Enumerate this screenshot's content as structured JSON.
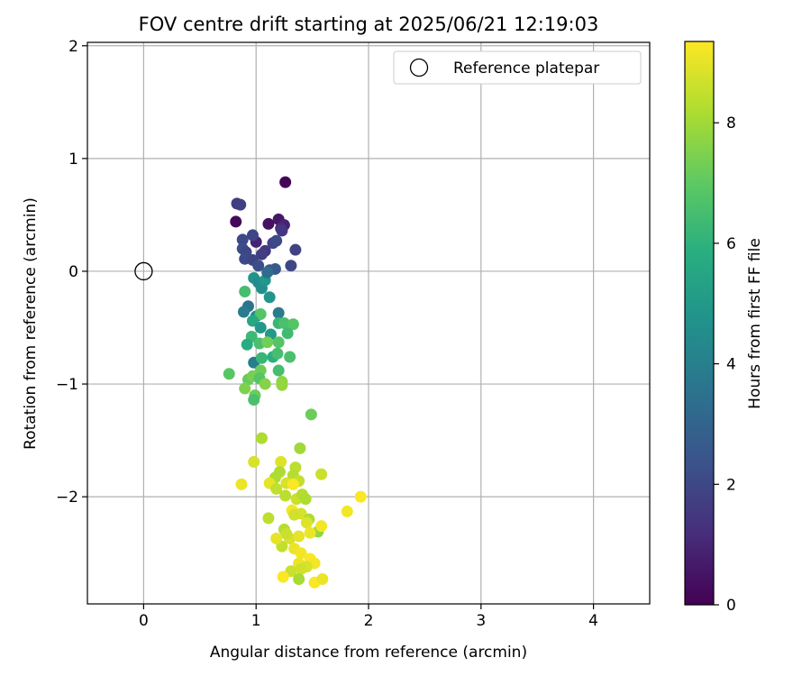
{
  "chart_data": {
    "type": "scatter",
    "title": "FOV centre drift starting at 2025/06/21 12:19:03",
    "xlabel": "Angular distance from reference (arcmin)",
    "ylabel": "Rotation from reference (arcmin)",
    "xlim": [
      -0.5,
      4.5
    ],
    "ylim": [
      -2.95,
      2.03
    ],
    "xticks": [
      0,
      1,
      2,
      3,
      4
    ],
    "xtick_labels": [
      "0",
      "1",
      "2",
      "3",
      "4"
    ],
    "yticks": [
      -2,
      -1,
      0,
      1,
      2
    ],
    "ytick_labels": [
      "−2",
      "−1",
      "0",
      "1",
      "2"
    ],
    "grid": true,
    "legend": {
      "placement": "top-right",
      "entries": [
        "Reference platepar"
      ]
    },
    "colorbar": {
      "label": "Hours from first FF file",
      "range": [
        0,
        9.35
      ],
      "ticks": [
        0,
        2,
        4,
        6,
        8
      ],
      "tick_labels": [
        "0",
        "2",
        "4",
        "6",
        "8"
      ],
      "colormap": "viridis"
    },
    "reference_point": {
      "name": "Reference platepar",
      "x": 0,
      "y": 0
    },
    "points": [
      [
        1.26,
        0.79,
        0.1
      ],
      [
        0.82,
        0.44,
        0.2
      ],
      [
        1.11,
        0.42,
        0.4
      ],
      [
        1.2,
        0.46,
        0.6
      ],
      [
        1.25,
        0.41,
        0.9
      ],
      [
        0.83,
        0.6,
        1.6
      ],
      [
        0.86,
        0.59,
        1.7
      ],
      [
        1.22,
        0.38,
        1.2
      ],
      [
        1.23,
        0.36,
        1.5
      ],
      [
        1.35,
        0.19,
        1.8
      ],
      [
        1.31,
        0.05,
        2.0
      ],
      [
        1.0,
        0.26,
        0.9
      ],
      [
        0.97,
        0.32,
        1.9
      ],
      [
        0.88,
        0.28,
        2.1
      ],
      [
        0.88,
        0.2,
        2.2
      ],
      [
        0.91,
        0.17,
        2.0
      ],
      [
        0.9,
        0.11,
        2.1
      ],
      [
        1.08,
        0.18,
        1.5
      ],
      [
        1.15,
        0.25,
        1.9
      ],
      [
        1.18,
        0.27,
        2.1
      ],
      [
        0.97,
        0.1,
        1.9
      ],
      [
        1.02,
        0.05,
        2.2
      ],
      [
        1.05,
        0.15,
        1.7
      ],
      [
        1.12,
        0.01,
        2.5
      ],
      [
        1.17,
        0.02,
        2.6
      ],
      [
        0.98,
        -0.06,
        4.7
      ],
      [
        1.02,
        -0.1,
        4.5
      ],
      [
        1.05,
        -0.15,
        4.6
      ],
      [
        1.08,
        -0.08,
        4.9
      ],
      [
        1.1,
        -0.01,
        3.3
      ],
      [
        0.9,
        -0.18,
        6.5
      ],
      [
        1.12,
        -0.23,
        4.8
      ],
      [
        0.93,
        -0.31,
        3.6
      ],
      [
        0.89,
        -0.36,
        3.9
      ],
      [
        1.0,
        -0.4,
        4.5
      ],
      [
        1.04,
        -0.38,
        6.8
      ],
      [
        1.2,
        -0.37,
        3.9
      ],
      [
        0.97,
        -0.44,
        5.6
      ],
      [
        1.04,
        -0.5,
        4.9
      ],
      [
        1.13,
        -0.56,
        5.0
      ],
      [
        1.2,
        -0.46,
        6.2
      ],
      [
        1.25,
        -0.46,
        6.6
      ],
      [
        1.33,
        -0.47,
        6.8
      ],
      [
        1.28,
        -0.55,
        6.4
      ],
      [
        0.96,
        -0.58,
        6.3
      ],
      [
        0.92,
        -0.65,
        5.8
      ],
      [
        1.03,
        -0.64,
        6.6
      ],
      [
        1.1,
        -0.63,
        7.3
      ],
      [
        1.2,
        -0.63,
        6.8
      ],
      [
        0.98,
        -0.81,
        4.0
      ],
      [
        1.05,
        -0.77,
        6.2
      ],
      [
        1.15,
        -0.76,
        5.9
      ],
      [
        1.19,
        -0.73,
        6.5
      ],
      [
        1.3,
        -0.76,
        6.6
      ],
      [
        1.04,
        -0.88,
        7.2
      ],
      [
        1.2,
        -0.88,
        6.5
      ],
      [
        0.76,
        -0.91,
        6.9
      ],
      [
        0.93,
        -0.96,
        7.1
      ],
      [
        0.97,
        -0.93,
        7.4
      ],
      [
        1.03,
        -0.95,
        6.8
      ],
      [
        1.08,
        -1.0,
        7.6
      ],
      [
        1.23,
        -0.98,
        7.7
      ],
      [
        1.23,
        -1.01,
        7.8
      ],
      [
        0.9,
        -1.04,
        7.5
      ],
      [
        0.99,
        -1.1,
        7.2
      ],
      [
        0.98,
        -1.14,
        6.6
      ],
      [
        1.49,
        -1.27,
        7.2
      ],
      [
        1.05,
        -1.48,
        8.2
      ],
      [
        1.39,
        -1.57,
        8.0
      ],
      [
        0.98,
        -1.69,
        8.8
      ],
      [
        1.22,
        -1.69,
        8.9
      ],
      [
        1.35,
        -1.74,
        8.4
      ],
      [
        1.58,
        -1.8,
        8.6
      ],
      [
        1.21,
        -1.78,
        8.2
      ],
      [
        1.17,
        -1.83,
        8.2
      ],
      [
        1.33,
        -1.81,
        8.3
      ],
      [
        1.38,
        -1.86,
        8.5
      ],
      [
        0.87,
        -1.89,
        9.1
      ],
      [
        1.12,
        -1.88,
        9.0
      ],
      [
        1.27,
        -1.88,
        8.8
      ],
      [
        1.33,
        -1.89,
        9.3
      ],
      [
        1.18,
        -1.93,
        8.5
      ],
      [
        1.26,
        -1.99,
        8.4
      ],
      [
        1.36,
        -2.02,
        8.6
      ],
      [
        1.41,
        -1.98,
        8.3
      ],
      [
        1.44,
        -2.02,
        8.2
      ],
      [
        1.32,
        -2.12,
        9.2
      ],
      [
        1.4,
        -2.15,
        8.8
      ],
      [
        1.11,
        -2.19,
        8.4
      ],
      [
        1.34,
        -2.16,
        8.7
      ],
      [
        1.47,
        -2.2,
        8.2
      ],
      [
        1.55,
        -2.31,
        7.8
      ],
      [
        1.81,
        -2.13,
        9.2
      ],
      [
        1.93,
        -2.0,
        9.3
      ],
      [
        1.58,
        -2.26,
        9.2
      ],
      [
        1.25,
        -2.29,
        8.3
      ],
      [
        1.3,
        -2.37,
        8.8
      ],
      [
        1.45,
        -2.23,
        8.9
      ],
      [
        1.38,
        -2.35,
        9.0
      ],
      [
        1.48,
        -2.32,
        9.1
      ],
      [
        1.23,
        -2.44,
        8.5
      ],
      [
        1.34,
        -2.46,
        9.1
      ],
      [
        1.4,
        -2.5,
        9.2
      ],
      [
        1.48,
        -2.55,
        9.3
      ],
      [
        1.38,
        -2.59,
        9.1
      ],
      [
        1.52,
        -2.59,
        9.2
      ],
      [
        1.45,
        -2.62,
        8.8
      ],
      [
        1.31,
        -2.66,
        8.6
      ],
      [
        1.4,
        -2.64,
        8.7
      ],
      [
        1.24,
        -2.71,
        9.3
      ],
      [
        1.38,
        -2.73,
        8.1
      ],
      [
        1.52,
        -2.76,
        9.3
      ],
      [
        1.59,
        -2.73,
        9.1
      ],
      [
        1.27,
        -2.33,
        8.6
      ],
      [
        1.18,
        -2.37,
        9.0
      ]
    ]
  }
}
